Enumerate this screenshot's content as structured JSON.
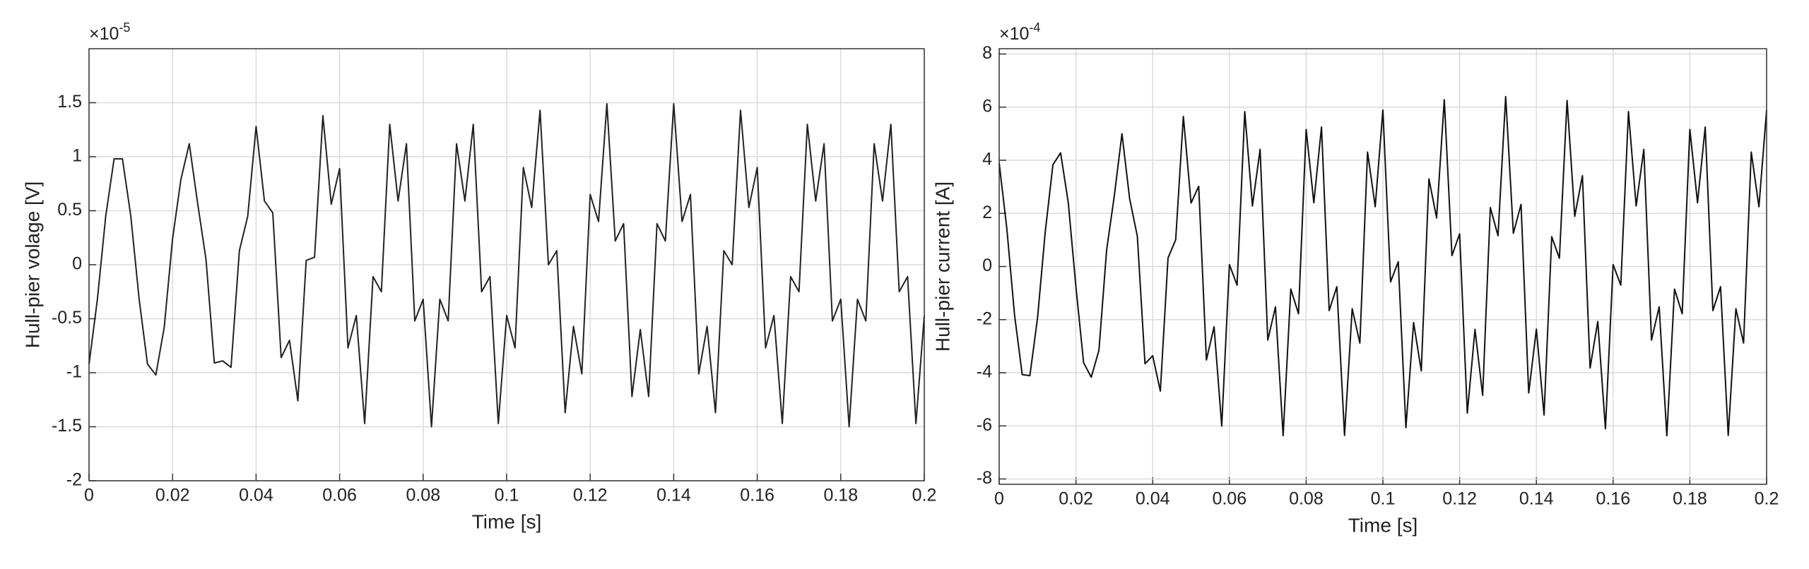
{
  "chart_data": [
    {
      "type": "line",
      "ylabel": "Hull-pier volage [V]",
      "xlabel": "Time [s]",
      "y_multiplier": {
        "base": "×10",
        "exponent": "-5"
      },
      "xlim": [
        0,
        0.2
      ],
      "xticks": [
        0,
        0.02,
        0.04,
        0.06,
        0.08,
        0.1,
        0.12,
        0.14,
        0.16,
        0.18,
        0.2
      ],
      "ylim": [
        -2,
        2
      ],
      "yticks": [
        -2,
        -1.5,
        -1,
        -0.5,
        0,
        0.5,
        1,
        1.5
      ],
      "grid": true,
      "series": [
        {
          "color": "#222222",
          "x": [
            0,
            0.002,
            0.004,
            0.006,
            0.008,
            0.01,
            0.012,
            0.014,
            0.016,
            0.018,
            0.02,
            0.022,
            0.024,
            0.026,
            0.028,
            0.03,
            0.032,
            0.034,
            0.036,
            0.038,
            0.04,
            0.042,
            0.044,
            0.046,
            0.048,
            0.05,
            0.052,
            0.054,
            0.056,
            0.058,
            0.06,
            0.062,
            0.064,
            0.066,
            0.068,
            0.07,
            0.072,
            0.074,
            0.076,
            0.078,
            0.08,
            0.082,
            0.084,
            0.086,
            0.088,
            0.09,
            0.092,
            0.094,
            0.096,
            0.098,
            0.1,
            0.102,
            0.104,
            0.106,
            0.108,
            0.11,
            0.112,
            0.114,
            0.116,
            0.118,
            0.12,
            0.122,
            0.124,
            0.126,
            0.128,
            0.13,
            0.132,
            0.134,
            0.136,
            0.138,
            0.14,
            0.142,
            0.144,
            0.146,
            0.148,
            0.15,
            0.152,
            0.154,
            0.156,
            0.158,
            0.16,
            0.162,
            0.164,
            0.166,
            0.168,
            0.17,
            0.172,
            0.174,
            0.176,
            0.178,
            0.18,
            0.182,
            0.184,
            0.186,
            0.188,
            0.19,
            0.192,
            0.194,
            0.196,
            0.198,
            0.2
          ],
          "values": [
            -0.92,
            -0.32,
            0.45,
            0.98,
            0.98,
            0.45,
            -0.32,
            -0.92,
            -1.02,
            -0.58,
            0.24,
            0.79,
            1.12,
            0.57,
            0.05,
            -0.91,
            -0.89,
            -0.95,
            0.13,
            0.45,
            1.28,
            0.59,
            0.48,
            -0.86,
            -0.7,
            -1.26,
            0.04,
            0.07,
            1.38,
            0.56,
            0.89,
            -0.77,
            -0.47,
            -1.47,
            -0.11,
            -0.25,
            1.3,
            0.59,
            1.12,
            -0.52,
            -0.32,
            -1.5,
            -0.32,
            -0.52,
            1.12,
            0.59,
            1.3,
            -0.25,
            -0.11,
            -1.47,
            -0.47,
            -0.77,
            0.9,
            0.53,
            1.43,
            0.0,
            0.13,
            -1.37,
            -0.57,
            -1.01,
            0.65,
            0.4,
            1.49,
            0.22,
            0.38,
            -1.22,
            -0.6,
            -1.22,
            0.38,
            0.22,
            1.49,
            0.4,
            0.65,
            -1.01,
            -0.57,
            -1.37,
            0.13,
            0.0,
            1.43,
            0.53,
            0.9,
            -0.77,
            -0.47,
            -1.47,
            -0.11,
            -0.25,
            1.3,
            0.59,
            1.12,
            -0.52,
            -0.32,
            -1.5,
            -0.32,
            -0.52,
            1.12,
            0.59,
            1.3,
            -0.25,
            -0.11,
            -1.47,
            -0.47
          ]
        }
      ]
    },
    {
      "type": "line",
      "ylabel": "Hull-pier current [A]",
      "xlabel": "Time [s]",
      "y_multiplier": {
        "base": "×10",
        "exponent": "-4"
      },
      "xlim": [
        0,
        0.2
      ],
      "xticks": [
        0,
        0.02,
        0.04,
        0.06,
        0.08,
        0.1,
        0.12,
        0.14,
        0.16,
        0.18,
        0.2
      ],
      "ylim": [
        -8.2,
        8.2
      ],
      "yticks": [
        -8,
        -6,
        -4,
        -2,
        0,
        2,
        4,
        6,
        8
      ],
      "grid": true,
      "series": [
        {
          "color": "#111111",
          "x": [
            0,
            0.002,
            0.004,
            0.006,
            0.008,
            0.01,
            0.012,
            0.014,
            0.016,
            0.018,
            0.02,
            0.022,
            0.024,
            0.026,
            0.028,
            0.03,
            0.032,
            0.034,
            0.036,
            0.038,
            0.04,
            0.042,
            0.044,
            0.046,
            0.048,
            0.05,
            0.052,
            0.054,
            0.056,
            0.058,
            0.06,
            0.062,
            0.064,
            0.066,
            0.068,
            0.07,
            0.072,
            0.074,
            0.076,
            0.078,
            0.08,
            0.082,
            0.084,
            0.086,
            0.088,
            0.09,
            0.092,
            0.094,
            0.096,
            0.098,
            0.1,
            0.102,
            0.104,
            0.106,
            0.108,
            0.11,
            0.112,
            0.114,
            0.116,
            0.118,
            0.12,
            0.122,
            0.124,
            0.126,
            0.128,
            0.13,
            0.132,
            0.134,
            0.136,
            0.138,
            0.14,
            0.142,
            0.144,
            0.146,
            0.148,
            0.15,
            0.152,
            0.154,
            0.156,
            0.158,
            0.16,
            0.162,
            0.164,
            0.166,
            0.168,
            0.17,
            0.172,
            0.174,
            0.176,
            0.178,
            0.18,
            0.182,
            0.184,
            0.186,
            0.188,
            0.19,
            0.192,
            0.194,
            0.196,
            0.198,
            0.2
          ],
          "values": [
            3.89,
            1.42,
            -1.82,
            -4.07,
            -4.11,
            -1.93,
            1.3,
            3.83,
            4.28,
            2.41,
            -0.77,
            -3.62,
            -4.17,
            -3.15,
            0.62,
            2.66,
            5.0,
            2.55,
            1.14,
            -3.66,
            -3.36,
            -4.69,
            0.32,
            1.01,
            5.65,
            2.39,
            3.02,
            -3.52,
            -2.27,
            -6.01,
            0.07,
            -0.7,
            5.83,
            2.28,
            4.41,
            -2.77,
            -1.52,
            -6.37,
            -0.85,
            -1.78,
            5.16,
            2.4,
            5.25,
            -1.66,
            -0.76,
            -6.36,
            -1.59,
            -2.88,
            4.31,
            2.25,
            5.89,
            -0.58,
            0.18,
            -6.07,
            -2.11,
            -3.93,
            3.3,
            1.83,
            6.28,
            0.41,
            1.23,
            -5.52,
            -2.37,
            -4.85,
            2.22,
            1.16,
            6.4,
            1.25,
            2.34,
            -4.76,
            -2.36,
            -5.59,
            1.12,
            0.31,
            6.25,
            1.89,
            3.42,
            -3.82,
            -2.07,
            -6.11,
            0.07,
            -0.7,
            5.83,
            2.28,
            4.41,
            -2.77,
            -1.52,
            -6.37,
            -0.85,
            -1.78,
            5.16,
            2.4,
            5.25,
            -1.66,
            -0.76,
            -6.36,
            -1.59,
            -2.88,
            4.31,
            2.25,
            5.89
          ]
        }
      ]
    }
  ]
}
